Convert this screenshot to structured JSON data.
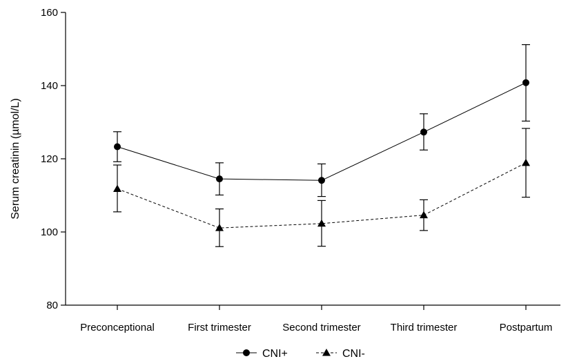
{
  "chart_data": {
    "type": "line",
    "categories": [
      "Preconceptional",
      "First trimester",
      "Second trimester",
      "Third trimester",
      "Postpartum"
    ],
    "ylabel": "Serum creatinin (µmol/L)",
    "ylim": [
      80,
      160
    ],
    "yticks": [
      80,
      100,
      120,
      140,
      160
    ],
    "grid": false,
    "legend_position": "bottom",
    "series": [
      {
        "name": "CNI+",
        "marker": "circle",
        "line_style": "solid",
        "color": "#000000",
        "values": [
          123.3,
          114.5,
          114.1,
          127.3,
          140.8
        ],
        "error_low": [
          119.2,
          110.1,
          109.7,
          122.4,
          130.3
        ],
        "error_high": [
          127.4,
          118.9,
          118.6,
          132.3,
          151.2
        ]
      },
      {
        "name": "CNI-",
        "marker": "triangle",
        "line_style": "dashed",
        "color": "#000000",
        "values": [
          111.8,
          101.1,
          102.3,
          104.6,
          118.9
        ],
        "error_low": [
          105.5,
          96.0,
          96.1,
          100.4,
          109.5
        ],
        "error_high": [
          118.3,
          106.3,
          108.6,
          108.8,
          128.3
        ]
      }
    ]
  }
}
